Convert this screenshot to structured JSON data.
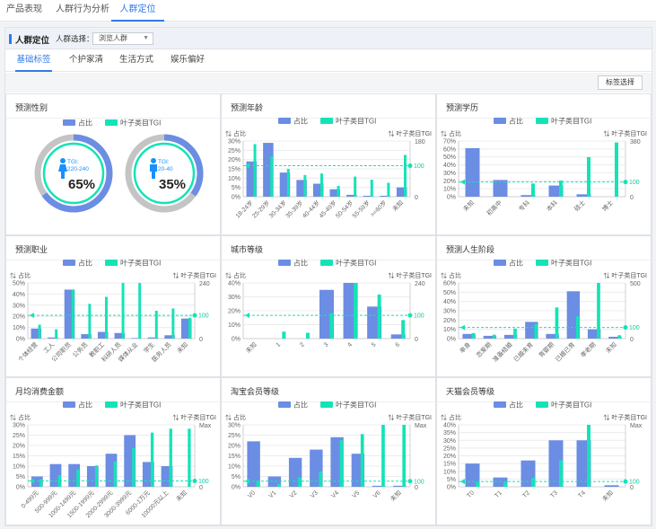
{
  "topnav": {
    "items": [
      "产品表现",
      "人群行为分析",
      "人群定位"
    ],
    "active": 2
  },
  "section": {
    "title": "人群定位",
    "select_label": "人群选择：",
    "select_value": "浏览人群"
  },
  "tabs": {
    "items": [
      "基础标签",
      "个护家清",
      "生活方式",
      "娱乐偏好"
    ],
    "active": 0
  },
  "toolbar": {
    "tag_button": "标签选择"
  },
  "legend": {
    "share": "占比",
    "tgi": "叶子类目TGI"
  },
  "axis": {
    "share": "占比",
    "tgi": "叶子类目TGI"
  },
  "colors": {
    "share": "#6b8de3",
    "tgi": "#14e3b7",
    "accent": "#2f7be6"
  },
  "icons": {
    "female": "female-person-icon",
    "male": "male-person-icon"
  },
  "gender": {
    "title": "预测性别",
    "female": {
      "tgi_label": "TGI:",
      "tgi_range": "220-240",
      "percent_label": "65%",
      "share": 0.65
    },
    "male": {
      "tgi_label": "TGI:",
      "tgi_range": "20-40",
      "percent_label": "35%",
      "share": 0.35
    }
  },
  "chart_data": [
    {
      "id": "age",
      "title": "预测年龄",
      "type": "bar",
      "categories": [
        "18-24岁",
        "25-29岁",
        "30-34岁",
        "35-39岁",
        "40-44岁",
        "45-49岁",
        "50-54岁",
        "55-59岁",
        ">=60岁",
        "未知"
      ],
      "series": [
        {
          "name": "占比",
          "values": [
            19,
            29,
            13,
            9,
            7,
            4,
            1,
            0.5,
            0.5,
            5
          ]
        },
        {
          "name": "叶子类目TGI",
          "values": [
            170,
            130,
            90,
            70,
            75,
            35,
            65,
            55,
            45,
            135
          ]
        }
      ],
      "ylim": [
        0,
        30
      ],
      "yticks": [
        "0%",
        "5%",
        "10%",
        "15%",
        "20%",
        "25%",
        "30%"
      ],
      "y2lim": [
        0,
        180
      ],
      "y2ticks": [
        "0",
        "180"
      ],
      "ref": 100,
      "ref_label": "100"
    },
    {
      "id": "edu",
      "title": "预测学历",
      "type": "bar",
      "categories": [
        "未知",
        "初高中",
        "专科",
        "本科",
        "硕士",
        "博士"
      ],
      "series": [
        {
          "name": "占比",
          "values": [
            61,
            21,
            2,
            14,
            3,
            0
          ]
        },
        {
          "name": "叶子类目TGI",
          "values": [
            0,
            0,
            90,
            110,
            270,
            370
          ]
        }
      ],
      "ylim": [
        0,
        70
      ],
      "yticks": [
        "0%",
        "10%",
        "20%",
        "30%",
        "40%",
        "50%",
        "60%",
        "70%"
      ],
      "y2lim": [
        0,
        380
      ],
      "y2ticks": [
        "0",
        "380"
      ],
      "ref": 100,
      "ref_label": "100"
    },
    {
      "id": "job",
      "title": "预测职业",
      "type": "bar",
      "categories": [
        "个体经营",
        "工人",
        "公司职员",
        "公务员",
        "教职工",
        "科研人员",
        "媒体从业",
        "学生",
        "医务人员",
        "未知"
      ],
      "series": [
        {
          "name": "占比",
          "values": [
            9,
            1,
            44,
            4,
            6,
            5,
            0.5,
            1,
            3,
            18
          ]
        },
        {
          "name": "叶子类目TGI",
          "values": [
            60,
            40,
            210,
            150,
            180,
            240,
            240,
            120,
            130,
            90
          ]
        }
      ],
      "ylim": [
        0,
        50
      ],
      "yticks": [
        "0%",
        "10%",
        "20%",
        "30%",
        "40%",
        "50%"
      ],
      "y2lim": [
        0,
        240
      ],
      "y2ticks": [
        "0",
        "240"
      ],
      "ref": 100,
      "ref_label": "100"
    },
    {
      "id": "city",
      "title": "城市等级",
      "type": "bar",
      "categories": [
        "未知",
        "1",
        "2",
        "3",
        "4",
        "5",
        "6"
      ],
      "series": [
        {
          "name": "占比",
          "values": [
            0,
            0,
            0,
            35,
            40,
            23,
            3
          ]
        },
        {
          "name": "叶子类目TGI",
          "values": [
            0,
            30,
            25,
            110,
            240,
            190,
            80
          ]
        }
      ],
      "ylim": [
        0,
        40
      ],
      "yticks": [
        "0%",
        "10%",
        "20%",
        "30%",
        "40%"
      ],
      "y2lim": [
        0,
        240
      ],
      "y2ticks": [
        "0",
        "240"
      ],
      "ref": 100,
      "ref_label": "100"
    },
    {
      "id": "life",
      "title": "预测人生阶段",
      "type": "bar",
      "categories": [
        "单身",
        "恋爱期",
        "准备结婚",
        "已婚未育",
        "育婴期",
        "已婚已育",
        "孝老期",
        "未知"
      ],
      "series": [
        {
          "name": "占比",
          "values": [
            5,
            3,
            4,
            18,
            5,
            51,
            10,
            2
          ]
        },
        {
          "name": "叶子类目TGI",
          "values": [
            50,
            35,
            90,
            130,
            280,
            200,
            500,
            30
          ]
        }
      ],
      "ylim": [
        0,
        60
      ],
      "yticks": [
        "0%",
        "10%",
        "20%",
        "30%",
        "40%",
        "50%",
        "60%"
      ],
      "y2lim": [
        0,
        500
      ],
      "y2ticks": [
        "0",
        "500"
      ],
      "ref": 100,
      "ref_label": "100"
    },
    {
      "id": "spend",
      "title": "月均消费金额",
      "type": "bar",
      "categories": [
        "0-499元",
        "500-999元",
        "1000-1499元",
        "1500-1999元",
        "2000-2999元",
        "3000-3999元",
        "6000-1万元",
        "10000元以上",
        "未知"
      ],
      "series": [
        {
          "name": "占比",
          "values": [
            5,
            11,
            11,
            10,
            16,
            25,
            12,
            10,
            0
          ]
        },
        {
          "name": "叶子类目TGI",
          "values": [
            40,
            60,
            90,
            110,
            130,
            200,
            280,
            300,
            300
          ]
        }
      ],
      "ylim": [
        0,
        30
      ],
      "yticks": [
        "0%",
        "5%",
        "10%",
        "15%",
        "20%",
        "25%",
        "30%"
      ],
      "y2lim": [
        0,
        320
      ],
      "y2ticks": [
        "0",
        "Max"
      ],
      "ref": 30,
      "ref_label": "100"
    },
    {
      "id": "taobao",
      "title": "淘宝会员等级",
      "type": "bar",
      "categories": [
        "V0",
        "V1",
        "V2",
        "V3",
        "V4",
        "V5",
        "V6",
        "未知"
      ],
      "series": [
        {
          "name": "占比",
          "values": [
            22,
            5,
            14,
            18,
            24,
            16,
            0.5,
            0.5
          ]
        },
        {
          "name": "叶子类目TGI",
          "values": [
            10,
            5,
            15,
            25,
            75,
            85,
            100,
            100
          ]
        }
      ],
      "ylim": [
        0,
        30
      ],
      "yticks": [
        "0%",
        "5%",
        "10%",
        "15%",
        "20%",
        "25%",
        "30%"
      ],
      "y2lim": [
        0,
        100
      ],
      "y2ticks": [
        "0",
        "Max"
      ],
      "ref": 9,
      "ref_label": "100"
    },
    {
      "id": "tmall",
      "title": "天猫会员等级",
      "type": "bar",
      "categories": [
        "T0",
        "T1",
        "T2",
        "T3",
        "T4",
        "未知"
      ],
      "series": [
        {
          "name": "占比",
          "values": [
            15,
            6,
            17,
            30,
            30,
            1
          ]
        },
        {
          "name": "叶子类目TGI",
          "values": [
            10,
            10,
            20,
            60,
            140,
            0
          ]
        }
      ],
      "ylim": [
        0,
        40
      ],
      "yticks": [
        "0%",
        "5%",
        "10%",
        "15%",
        "20%",
        "25%",
        "30%",
        "35%",
        "40%"
      ],
      "y2lim": [
        0,
        140
      ],
      "y2ticks": [
        "0",
        "Max"
      ],
      "ref": 12,
      "ref_label": "100"
    }
  ]
}
